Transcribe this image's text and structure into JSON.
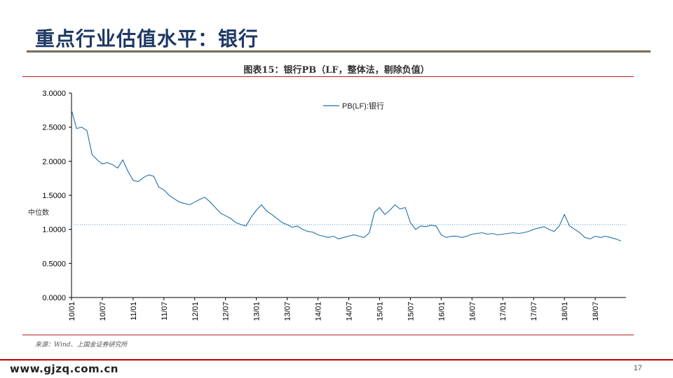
{
  "slide": {
    "title": "重点行业估值水平：银行",
    "source": "来源：Wind、上国金证券研究所",
    "watermark": "www.gjzq.com.cn",
    "page_number": "17"
  },
  "colors": {
    "series": "#1f6fa8",
    "median": "#4a9fd4",
    "title": "#1f3864",
    "rule": "#b22222"
  },
  "chart_data": {
    "type": "line",
    "title": "图表15：银行PB（LF，整体法，剔除负值）",
    "xlabel": "",
    "ylabel": "",
    "ylim": [
      0,
      3
    ],
    "xlim": [
      "2010-01",
      "2018-12"
    ],
    "yticks": [
      "0.0000",
      "0.5000",
      "1.0000",
      "1.5000",
      "2.0000",
      "2.5000",
      "3.0000"
    ],
    "xticks": [
      "10/01",
      "10/07",
      "11/01",
      "11/07",
      "12/01",
      "12/07",
      "13/01",
      "13/07",
      "14/01",
      "14/07",
      "15/01",
      "15/07",
      "16/01",
      "16/07",
      "17/01",
      "17/07",
      "18/01",
      "18/07"
    ],
    "legend": {
      "position": "top-center",
      "entries": [
        "PB(LF):银行"
      ]
    },
    "grid": false,
    "series": [
      {
        "name": "PB(LF):银行",
        "x": [
          "2010-01",
          "2010-02",
          "2010-03",
          "2010-04",
          "2010-05",
          "2010-06",
          "2010-07",
          "2010-08",
          "2010-09",
          "2010-10",
          "2010-11",
          "2010-12",
          "2011-01",
          "2011-02",
          "2011-03",
          "2011-04",
          "2011-05",
          "2011-06",
          "2011-07",
          "2011-08",
          "2011-09",
          "2011-10",
          "2011-11",
          "2011-12",
          "2012-01",
          "2012-02",
          "2012-03",
          "2012-04",
          "2012-05",
          "2012-06",
          "2012-07",
          "2012-08",
          "2012-09",
          "2012-10",
          "2012-11",
          "2012-12",
          "2013-01",
          "2013-02",
          "2013-03",
          "2013-04",
          "2013-05",
          "2013-06",
          "2013-07",
          "2013-08",
          "2013-09",
          "2013-10",
          "2013-11",
          "2013-12",
          "2014-01",
          "2014-02",
          "2014-03",
          "2014-04",
          "2014-05",
          "2014-06",
          "2014-07",
          "2014-08",
          "2014-09",
          "2014-10",
          "2014-11",
          "2014-12",
          "2015-01",
          "2015-02",
          "2015-03",
          "2015-04",
          "2015-05",
          "2015-06",
          "2015-07",
          "2015-08",
          "2015-09",
          "2015-10",
          "2015-11",
          "2015-12",
          "2016-01",
          "2016-02",
          "2016-03",
          "2016-04",
          "2016-05",
          "2016-06",
          "2016-07",
          "2016-08",
          "2016-09",
          "2016-10",
          "2016-11",
          "2016-12",
          "2017-01",
          "2017-02",
          "2017-03",
          "2017-04",
          "2017-05",
          "2017-06",
          "2017-07",
          "2017-08",
          "2017-09",
          "2017-10",
          "2017-11",
          "2017-12",
          "2018-01",
          "2018-02",
          "2018-03",
          "2018-04",
          "2018-05",
          "2018-06",
          "2018-07",
          "2018-08",
          "2018-09",
          "2018-10",
          "2018-11",
          "2018-12"
        ],
        "values": [
          2.75,
          2.48,
          2.5,
          2.45,
          2.1,
          2.02,
          1.96,
          1.98,
          1.95,
          1.9,
          2.02,
          1.85,
          1.72,
          1.7,
          1.76,
          1.8,
          1.78,
          1.62,
          1.58,
          1.5,
          1.45,
          1.4,
          1.38,
          1.36,
          1.4,
          1.44,
          1.47,
          1.4,
          1.32,
          1.24,
          1.2,
          1.16,
          1.1,
          1.07,
          1.05,
          1.18,
          1.28,
          1.36,
          1.27,
          1.22,
          1.16,
          1.1,
          1.07,
          1.03,
          1.05,
          1.0,
          0.97,
          0.96,
          0.92,
          0.9,
          0.88,
          0.9,
          0.86,
          0.88,
          0.9,
          0.92,
          0.9,
          0.88,
          0.95,
          1.25,
          1.32,
          1.22,
          1.28,
          1.36,
          1.3,
          1.32,
          1.1,
          1.0,
          1.05,
          1.04,
          1.06,
          1.05,
          0.92,
          0.88,
          0.9,
          0.9,
          0.88,
          0.9,
          0.93,
          0.94,
          0.95,
          0.93,
          0.94,
          0.92,
          0.93,
          0.94,
          0.95,
          0.94,
          0.95,
          0.97,
          1.0,
          1.02,
          1.04,
          1.0,
          0.97,
          1.05,
          1.22,
          1.05,
          1.0,
          0.95,
          0.88,
          0.86,
          0.9,
          0.88,
          0.9,
          0.88,
          0.86,
          0.83
        ]
      }
    ],
    "annotations": [
      {
        "label": "中位数",
        "y": 1.07
      }
    ]
  }
}
